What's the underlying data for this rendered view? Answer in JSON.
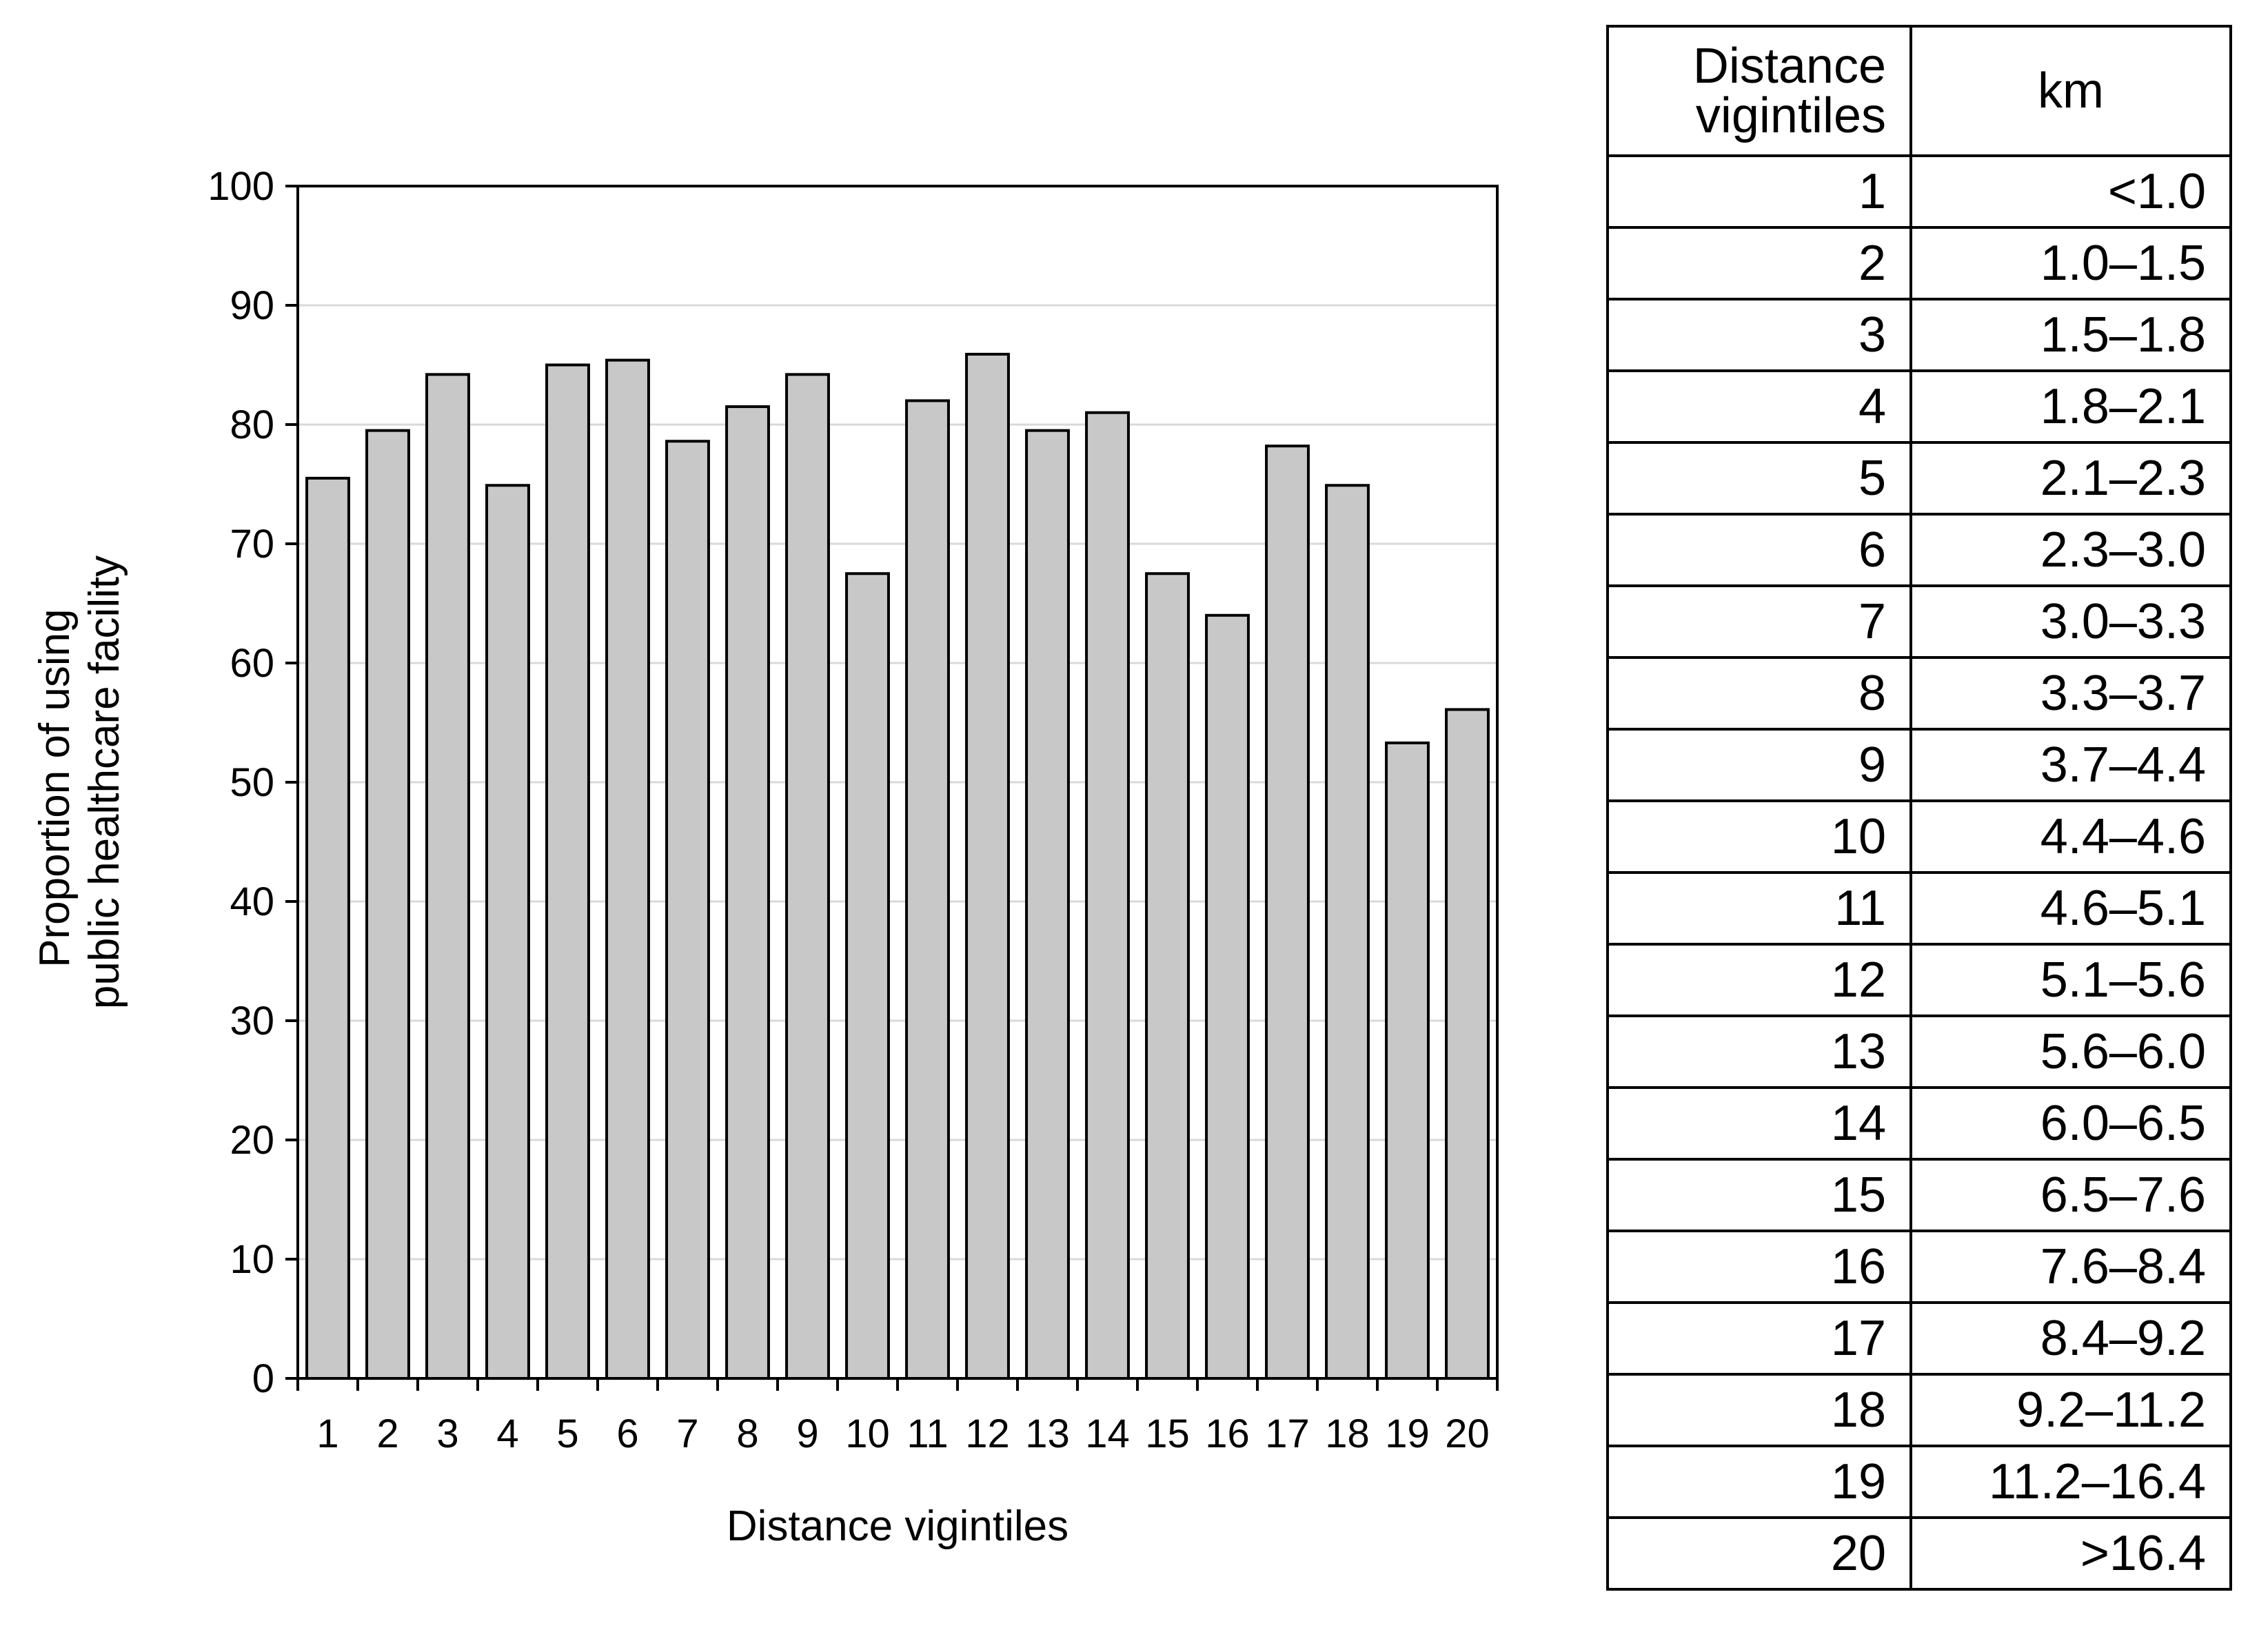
{
  "chart_data": {
    "type": "bar",
    "xlabel": "Distance vigintiles",
    "ylabel_lines": [
      "Proportion of using",
      "public healthcare facility"
    ],
    "ylim": [
      0,
      100
    ],
    "yticks": [
      0,
      10,
      20,
      30,
      40,
      50,
      60,
      70,
      80,
      90,
      100
    ],
    "grid": true,
    "categories": [
      "1",
      "2",
      "3",
      "4",
      "5",
      "6",
      "7",
      "8",
      "9",
      "10",
      "11",
      "12",
      "13",
      "14",
      "15",
      "16",
      "17",
      "18",
      "19",
      "20"
    ],
    "values": [
      75.5,
      79.5,
      84.2,
      74.9,
      85.0,
      85.4,
      78.6,
      81.5,
      84.2,
      67.5,
      82.0,
      85.9,
      79.5,
      81.0,
      67.5,
      64.0,
      78.2,
      74.9,
      53.3,
      56.1
    ],
    "colors": {
      "bar_fill": "#c8c8c8",
      "bar_edge": "#000000",
      "grid": "#d9d9d9"
    }
  },
  "table": {
    "header": {
      "col1": [
        "Distance",
        "vigintiles"
      ],
      "col2": "km"
    },
    "rows": [
      [
        "1",
        "<1.0"
      ],
      [
        "2",
        "1.0–1.5"
      ],
      [
        "3",
        "1.5–1.8"
      ],
      [
        "4",
        "1.8–2.1"
      ],
      [
        "5",
        "2.1–2.3"
      ],
      [
        "6",
        "2.3–3.0"
      ],
      [
        "7",
        "3.0–3.3"
      ],
      [
        "8",
        "3.3–3.7"
      ],
      [
        "9",
        "3.7–4.4"
      ],
      [
        "10",
        "4.4–4.6"
      ],
      [
        "11",
        "4.6–5.1"
      ],
      [
        "12",
        "5.1–5.6"
      ],
      [
        "13",
        "5.6–6.0"
      ],
      [
        "14",
        "6.0–6.5"
      ],
      [
        "15",
        "6.5–7.6"
      ],
      [
        "16",
        "7.6–8.4"
      ],
      [
        "17",
        "8.4–9.2"
      ],
      [
        "18",
        "9.2–11.2"
      ],
      [
        "19",
        "11.2–16.4"
      ],
      [
        "20",
        ">16.4"
      ]
    ]
  }
}
